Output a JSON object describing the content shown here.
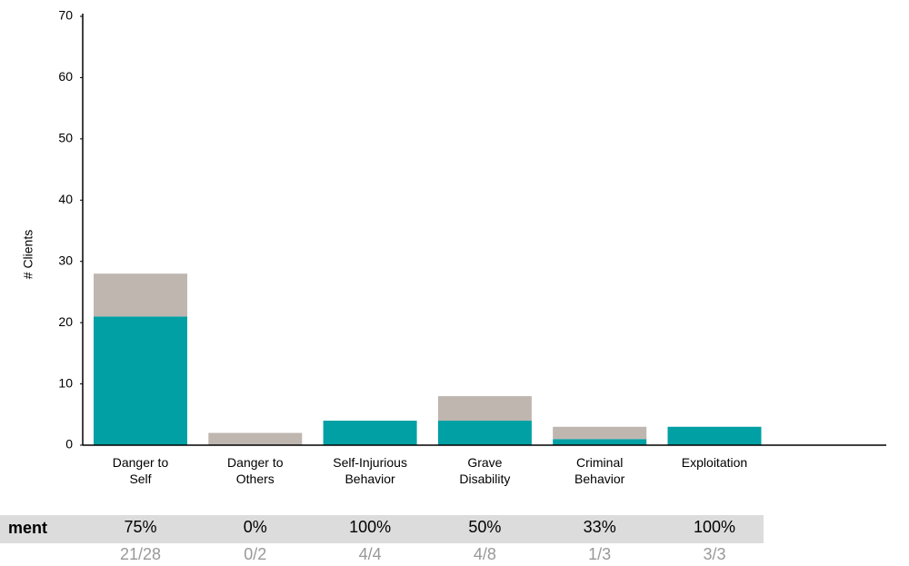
{
  "chart_data": {
    "type": "stacked_bar",
    "y_label": "# Clients",
    "categories": [
      "Danger to\nSelf",
      "Danger to\nOthers",
      "Self-Injurious\nBehavior",
      "Grave\nDisability",
      "Criminal\nBehavior",
      "Exploitation"
    ],
    "series": [
      {
        "color": "#00a0a4",
        "values": [
          21,
          0,
          4,
          4,
          1,
          3
        ]
      },
      {
        "color": "#bfb6b0",
        "values": [
          7,
          2,
          0,
          4,
          2,
          0
        ]
      }
    ],
    "ylim": [
      0,
      70
    ],
    "yticks": [
      0,
      10,
      20,
      30,
      40,
      50,
      60,
      70
    ],
    "table": {
      "label": "ment",
      "percent": [
        "75%",
        "0%",
        "100%",
        "50%",
        "33%",
        "100%"
      ],
      "ratio": [
        "21/28",
        "0/2",
        "4/4",
        "4/8",
        "1/3",
        "3/3"
      ]
    }
  }
}
